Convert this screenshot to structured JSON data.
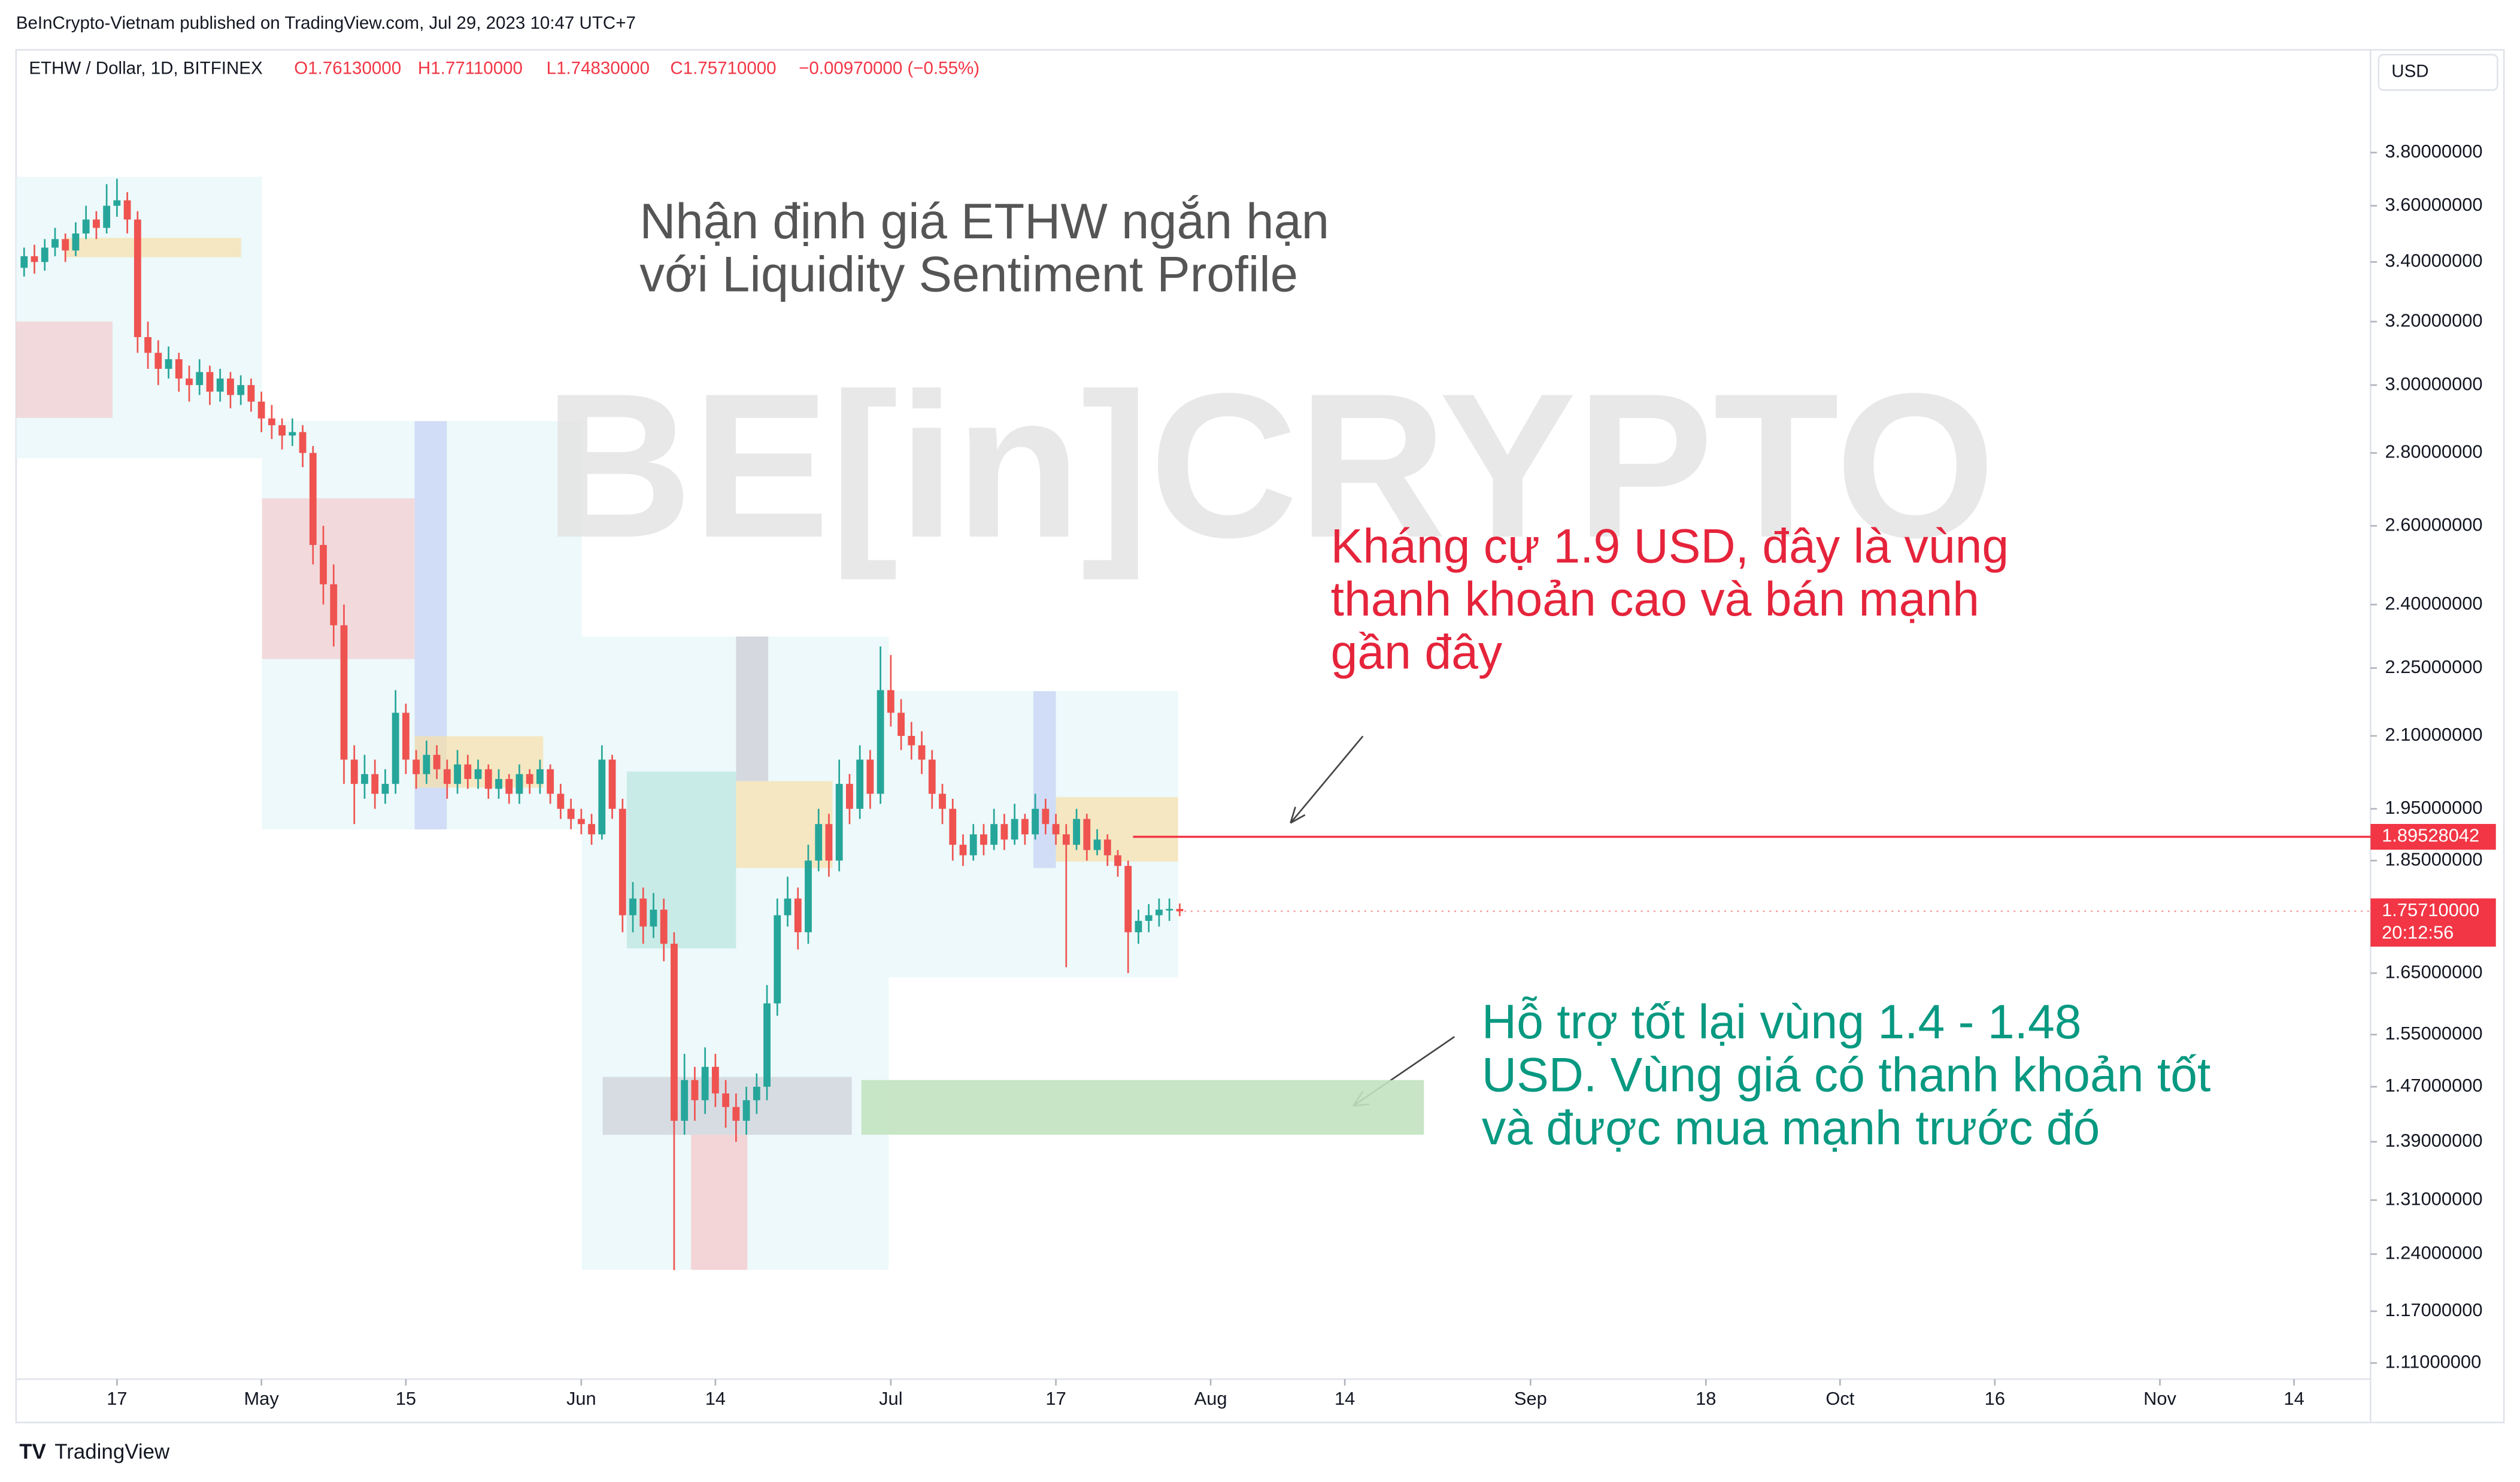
{
  "header": {
    "published": "BeInCrypto-Vietnam published on TradingView.com, Jul 29, 2023 10:47 UTC+7"
  },
  "footer": {
    "logo": "TradingView"
  },
  "chart_data": {
    "type": "candlestick",
    "symbol": "ETHW / Dollar, 1D, BITFINEX",
    "ohlc_header": [
      "O1.76130000",
      "H1.77110000",
      "L1.74830000",
      "C1.75710000",
      "−0.00970000 (−0.55%)"
    ],
    "currency": "USD",
    "watermark": "BE[in]CRYPTO",
    "title": [
      "Nhận định giá ETHW ngắn hạn",
      "với Liquidity Sentiment Profile"
    ],
    "resistance_note": [
      "Kháng cự 1.9 USD, đây là vùng",
      "thanh khoản cao và bán mạnh",
      "gần đây"
    ],
    "support_note": [
      "Hỗ trợ tốt lại vùng 1.4 - 1.48",
      "USD. Vùng giá có thanh khoản tốt",
      "và được mua mạnh trước đó"
    ],
    "support_zone": [
      1.4,
      1.48
    ],
    "resistance_line": {
      "value": 1.89528042,
      "label": "1.89528042"
    },
    "last_price": {
      "value": 1.7571,
      "label": "1.75710000"
    },
    "countdown": "20:12:56",
    "log_scale": true,
    "up_color": "#26a69a",
    "down_color": "#ef5350",
    "line_color": "#f23645",
    "zone_color": "#c2e3c0",
    "x": [
      "04-08",
      "04-09",
      "04-10",
      "04-11",
      "04-12",
      "04-13",
      "04-14",
      "04-15",
      "04-16",
      "04-17",
      "04-18",
      "04-19",
      "04-20",
      "04-21",
      "04-22",
      "04-23",
      "04-24",
      "04-25",
      "04-26",
      "04-27",
      "04-28",
      "04-29",
      "04-30",
      "05-01",
      "05-02",
      "05-03",
      "05-04",
      "05-05",
      "05-06",
      "05-07",
      "05-08",
      "05-09",
      "05-10",
      "05-11",
      "05-12",
      "05-13",
      "05-14",
      "05-15",
      "05-16",
      "05-17",
      "05-18",
      "05-19",
      "05-20",
      "05-21",
      "05-22",
      "05-23",
      "05-24",
      "05-25",
      "05-26",
      "05-27",
      "05-28",
      "05-29",
      "05-30",
      "05-31",
      "06-01",
      "06-02",
      "06-03",
      "06-04",
      "06-05",
      "06-06",
      "06-07",
      "06-08",
      "06-09",
      "06-10",
      "06-11",
      "06-12",
      "06-13",
      "06-14",
      "06-15",
      "06-16",
      "06-17",
      "06-18",
      "06-19",
      "06-20",
      "06-21",
      "06-22",
      "06-23",
      "06-24",
      "06-25",
      "06-26",
      "06-27",
      "06-28",
      "06-29",
      "06-30",
      "07-01",
      "07-02",
      "07-03",
      "07-04",
      "07-05",
      "07-06",
      "07-07",
      "07-08",
      "07-09",
      "07-10",
      "07-11",
      "07-12",
      "07-13",
      "07-14",
      "07-15",
      "07-16",
      "07-17",
      "07-18",
      "07-19",
      "07-20",
      "07-21",
      "07-22",
      "07-23",
      "07-24",
      "07-25",
      "07-26",
      "07-27",
      "07-28",
      "07-29"
    ],
    "open": [
      3.38,
      3.42,
      3.4,
      3.45,
      3.48,
      3.44,
      3.5,
      3.55,
      3.52,
      3.6,
      3.62,
      3.55,
      3.15,
      3.1,
      3.05,
      3.08,
      3.02,
      3.0,
      3.04,
      2.98,
      3.02,
      2.97,
      3.0,
      2.95,
      2.9,
      2.88,
      2.85,
      2.86,
      2.8,
      2.55,
      2.45,
      2.35,
      2.05,
      2.0,
      2.02,
      1.98,
      2.0,
      2.15,
      2.05,
      2.02,
      2.06,
      2.03,
      2.0,
      2.04,
      2.01,
      2.03,
      1.99,
      2.01,
      1.98,
      2.02,
      2.0,
      2.03,
      1.98,
      1.95,
      1.93,
      1.92,
      1.9,
      2.05,
      1.95,
      1.75,
      1.78,
      1.73,
      1.76,
      1.7,
      1.42,
      1.48,
      1.45,
      1.5,
      1.46,
      1.44,
      1.42,
      1.45,
      1.47,
      1.6,
      1.75,
      1.78,
      1.72,
      1.85,
      1.92,
      1.85,
      2.0,
      1.95,
      2.05,
      1.98,
      2.2,
      2.15,
      2.1,
      2.08,
      2.05,
      1.98,
      1.95,
      1.88,
      1.86,
      1.9,
      1.88,
      1.92,
      1.89,
      1.93,
      1.9,
      1.95,
      1.92,
      1.9,
      1.88,
      1.93,
      1.87,
      1.89,
      1.86,
      1.84,
      1.72,
      1.74,
      1.75,
      1.76,
      1.7613
    ],
    "high": [
      3.45,
      3.46,
      3.48,
      3.52,
      3.5,
      3.54,
      3.6,
      3.58,
      3.68,
      3.7,
      3.65,
      3.58,
      3.2,
      3.14,
      3.12,
      3.1,
      3.06,
      3.08,
      3.06,
      3.05,
      3.04,
      3.03,
      3.02,
      2.98,
      2.94,
      2.9,
      2.9,
      2.88,
      2.82,
      2.6,
      2.5,
      2.4,
      2.08,
      2.06,
      2.05,
      2.03,
      2.2,
      2.17,
      2.07,
      2.09,
      2.08,
      2.05,
      2.07,
      2.06,
      2.05,
      2.04,
      2.03,
      2.02,
      2.04,
      2.03,
      2.05,
      2.04,
      2.0,
      1.97,
      1.95,
      1.94,
      2.08,
      2.06,
      1.97,
      1.81,
      1.8,
      1.79,
      1.78,
      1.72,
      1.52,
      1.5,
      1.53,
      1.52,
      1.48,
      1.46,
      1.47,
      1.49,
      1.63,
      1.78,
      1.82,
      1.8,
      1.88,
      1.95,
      1.94,
      2.05,
      2.02,
      2.08,
      2.07,
      2.3,
      2.28,
      2.18,
      2.13,
      2.11,
      2.07,
      2.0,
      1.97,
      1.9,
      1.92,
      1.92,
      1.95,
      1.94,
      1.96,
      1.94,
      1.98,
      1.97,
      1.94,
      1.92,
      1.95,
      1.94,
      1.91,
      1.9,
      1.87,
      1.85,
      1.76,
      1.77,
      1.78,
      1.78,
      1.7711
    ],
    "low": [
      3.35,
      3.36,
      3.37,
      3.42,
      3.4,
      3.42,
      3.48,
      3.48,
      3.5,
      3.56,
      3.5,
      3.1,
      3.05,
      3.0,
      3.02,
      2.98,
      2.95,
      2.97,
      2.94,
      2.95,
      2.93,
      2.94,
      2.92,
      2.86,
      2.84,
      2.81,
      2.82,
      2.76,
      2.5,
      2.4,
      2.3,
      2.0,
      1.92,
      1.97,
      1.95,
      1.96,
      1.98,
      2.02,
      1.99,
      2.0,
      2.01,
      1.97,
      1.98,
      1.99,
      1.99,
      1.97,
      1.97,
      1.96,
      1.96,
      1.98,
      1.98,
      1.96,
      1.93,
      1.91,
      1.9,
      1.88,
      1.89,
      1.93,
      1.72,
      1.72,
      1.7,
      1.71,
      1.67,
      1.22,
      1.4,
      1.42,
      1.43,
      1.44,
      1.41,
      1.39,
      1.4,
      1.43,
      1.45,
      1.58,
      1.73,
      1.69,
      1.7,
      1.83,
      1.82,
      1.83,
      1.92,
      1.93,
      1.95,
      1.96,
      2.12,
      2.07,
      2.05,
      2.02,
      1.95,
      1.92,
      1.85,
      1.84,
      1.85,
      1.86,
      1.87,
      1.87,
      1.88,
      1.88,
      1.89,
      1.9,
      1.88,
      1.66,
      1.87,
      1.85,
      1.86,
      1.84,
      1.82,
      1.65,
      1.7,
      1.72,
      1.73,
      1.74,
      1.7483
    ],
    "close": [
      3.42,
      3.4,
      3.45,
      3.48,
      3.44,
      3.5,
      3.55,
      3.52,
      3.6,
      3.62,
      3.55,
      3.15,
      3.1,
      3.05,
      3.08,
      3.02,
      3.0,
      3.04,
      2.98,
      3.02,
      2.97,
      3.0,
      2.95,
      2.9,
      2.88,
      2.85,
      2.86,
      2.8,
      2.55,
      2.45,
      2.35,
      2.05,
      2.0,
      2.02,
      1.98,
      2.0,
      2.15,
      2.05,
      2.02,
      2.06,
      2.03,
      2.0,
      2.04,
      2.01,
      2.03,
      1.99,
      2.01,
      1.98,
      2.02,
      2.0,
      2.03,
      1.98,
      1.95,
      1.93,
      1.92,
      1.9,
      2.05,
      1.95,
      1.75,
      1.78,
      1.73,
      1.76,
      1.7,
      1.42,
      1.48,
      1.45,
      1.5,
      1.46,
      1.44,
      1.42,
      1.45,
      1.47,
      1.6,
      1.75,
      1.78,
      1.72,
      1.85,
      1.92,
      1.85,
      2.0,
      1.95,
      2.05,
      1.98,
      2.2,
      2.15,
      2.1,
      2.08,
      2.05,
      1.98,
      1.95,
      1.88,
      1.86,
      1.9,
      1.88,
      1.92,
      1.89,
      1.93,
      1.9,
      1.95,
      1.92,
      1.9,
      1.88,
      1.93,
      1.87,
      1.89,
      1.86,
      1.84,
      1.72,
      1.74,
      1.75,
      1.76,
      1.7613,
      1.7571
    ],
    "ylim": [
      1.092,
      4.01
    ],
    "yticks": [
      {
        "value": 3.8,
        "label": "3.80000000"
      },
      {
        "value": 3.6,
        "label": "3.60000000"
      },
      {
        "value": 3.4,
        "label": "3.40000000"
      },
      {
        "value": 3.2,
        "label": "3.20000000"
      },
      {
        "value": 3.0,
        "label": "3.00000000"
      },
      {
        "value": 2.8,
        "label": "2.80000000"
      },
      {
        "value": 2.6,
        "label": "2.60000000"
      },
      {
        "value": 2.4,
        "label": "2.40000000"
      },
      {
        "value": 2.25,
        "label": "2.25000000"
      },
      {
        "value": 2.1,
        "label": "2.10000000"
      },
      {
        "value": 1.95,
        "label": "1.95000000"
      },
      {
        "value": 1.85,
        "label": "1.85000000"
      },
      {
        "value": 1.65,
        "label": "1.65000000"
      },
      {
        "value": 1.55,
        "label": "1.55000000"
      },
      {
        "value": 1.47,
        "label": "1.47000000"
      },
      {
        "value": 1.39,
        "label": "1.39000000"
      },
      {
        "value": 1.31,
        "label": "1.31000000"
      },
      {
        "value": 1.24,
        "label": "1.24000000"
      },
      {
        "value": 1.17,
        "label": "1.17000000"
      },
      {
        "value": 1.11,
        "label": "1.11000000"
      }
    ],
    "xticks": [
      {
        "value": "04-17",
        "label": "17"
      },
      {
        "value": "05-01",
        "label": "May"
      },
      {
        "value": "05-15",
        "label": "15"
      },
      {
        "value": "06-01",
        "label": "Jun"
      },
      {
        "value": "06-14",
        "label": "14"
      },
      {
        "value": "07-01",
        "label": "Jul"
      },
      {
        "value": "07-17",
        "label": "17"
      },
      {
        "value": "08-01",
        "label": "Aug"
      },
      {
        "value": "08-14",
        "label": "14"
      },
      {
        "value": "09-01",
        "label": "Sep"
      },
      {
        "value": "09-18",
        "label": "18"
      },
      {
        "value": "10-01",
        "label": "Oct"
      },
      {
        "value": "10-16",
        "label": "16"
      },
      {
        "value": "11-01",
        "label": "Nov"
      },
      {
        "value": "11-14",
        "label": "14"
      }
    ]
  }
}
